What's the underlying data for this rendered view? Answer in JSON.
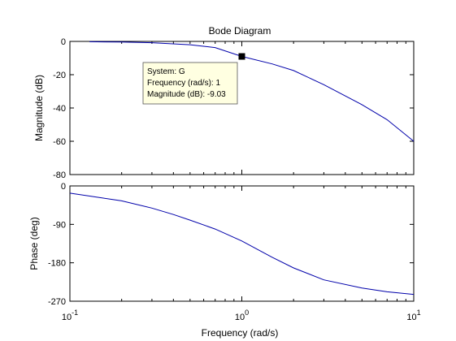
{
  "chart_data": {
    "type": "line",
    "title": "Bode Diagram",
    "xlabel": "Frequency  (rad/s)",
    "x_scale": "log",
    "xlim": [
      0.1,
      10
    ],
    "x_ticks": [
      {
        "value": 0.1,
        "base": "10",
        "exp": "-1"
      },
      {
        "value": 1,
        "base": "10",
        "exp": "0"
      },
      {
        "value": 10,
        "base": "10",
        "exp": "1"
      }
    ],
    "magnitude": {
      "ylabel": "Magnitude (dB)",
      "ylim": [
        -80,
        0
      ],
      "yticks": [
        "0",
        "-20",
        "-40",
        "-60",
        "-80"
      ],
      "series_color": "#0000aa",
      "x": [
        0.13,
        0.2,
        0.3,
        0.5,
        0.7,
        1.0,
        1.5,
        2.0,
        3.0,
        5.0,
        7.0,
        10.0
      ],
      "y": [
        -0.2,
        -0.4,
        -0.8,
        -2.0,
        -3.7,
        -9.03,
        -13.5,
        -17.5,
        -26,
        -38,
        -47,
        -60
      ]
    },
    "phase": {
      "ylabel": "Phase (deg)",
      "ylim": [
        -270,
        0
      ],
      "yticks": [
        "0",
        "-90",
        "-180",
        "-270"
      ],
      "series_color": "#0000aa",
      "x": [
        0.1,
        0.2,
        0.3,
        0.4,
        0.5,
        0.7,
        1.0,
        1.5,
        2.0,
        3.0,
        5.0,
        7.0,
        10.0
      ],
      "y": [
        -17,
        -35,
        -52,
        -67,
        -80,
        -101,
        -129,
        -167,
        -192,
        -220,
        -239,
        -248,
        -254
      ]
    },
    "datatip": {
      "lines": [
        "System: G",
        "Frequency (rad/s): 1",
        "Magnitude (dB): -9.03"
      ],
      "x": 1,
      "y": -9.03,
      "background": "#ffffe1"
    },
    "grid": false
  }
}
